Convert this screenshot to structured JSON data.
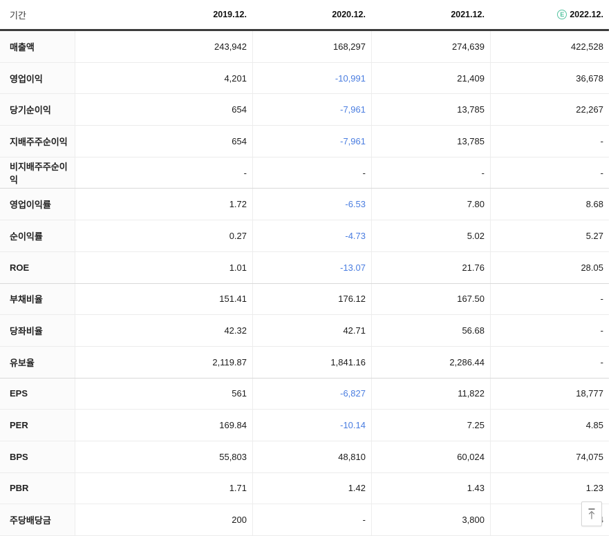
{
  "table": {
    "period_label": "기간",
    "estimate_icon": "E",
    "columns": [
      {
        "label": "2019.12.",
        "estimate": false
      },
      {
        "label": "2020.12.",
        "estimate": false
      },
      {
        "label": "2021.12.",
        "estimate": false
      },
      {
        "label": "2022.12.",
        "estimate": true
      }
    ],
    "rows": [
      {
        "label": "매출액",
        "values": [
          "243,942",
          "168,297",
          "274,639",
          "422,528"
        ],
        "group_end": false
      },
      {
        "label": "영업이익",
        "values": [
          "4,201",
          "-10,991",
          "21,409",
          "36,678"
        ],
        "group_end": false
      },
      {
        "label": "당기순이익",
        "values": [
          "654",
          "-7,961",
          "13,785",
          "22,267"
        ],
        "group_end": false
      },
      {
        "label": "지배주주순이익",
        "values": [
          "654",
          "-7,961",
          "13,785",
          "-"
        ],
        "group_end": false
      },
      {
        "label": "비지배주주순이익",
        "values": [
          "-",
          "-",
          "-",
          "-"
        ],
        "group_end": true
      },
      {
        "label": "영업이익률",
        "values": [
          "1.72",
          "-6.53",
          "7.80",
          "8.68"
        ],
        "group_end": false
      },
      {
        "label": "순이익률",
        "values": [
          "0.27",
          "-4.73",
          "5.02",
          "5.27"
        ],
        "group_end": false
      },
      {
        "label": "ROE",
        "values": [
          "1.01",
          "-13.07",
          "21.76",
          "28.05"
        ],
        "group_end": true
      },
      {
        "label": "부채비율",
        "values": [
          "151.41",
          "176.12",
          "167.50",
          "-"
        ],
        "group_end": false
      },
      {
        "label": "당좌비율",
        "values": [
          "42.32",
          "42.71",
          "56.68",
          "-"
        ],
        "group_end": false
      },
      {
        "label": "유보율",
        "values": [
          "2,119.87",
          "1,841.16",
          "2,286.44",
          "-"
        ],
        "group_end": true
      },
      {
        "label": "EPS",
        "values": [
          "561",
          "-6,827",
          "11,822",
          "18,777"
        ],
        "group_end": false
      },
      {
        "label": "PER",
        "values": [
          "169.84",
          "-10.14",
          "7.25",
          "4.85"
        ],
        "group_end": false
      },
      {
        "label": "BPS",
        "values": [
          "55,803",
          "48,810",
          "60,024",
          "74,075"
        ],
        "group_end": false
      },
      {
        "label": "PBR",
        "values": [
          "1.71",
          "1.42",
          "1.43",
          "1.23"
        ],
        "group_end": false
      },
      {
        "label": "주당배당금",
        "values": [
          "200",
          "-",
          "3,800",
          "4"
        ],
        "group_end": false
      }
    ]
  },
  "scroll_top_button": {
    "icon": "arrow-up-to-top"
  },
  "colors": {
    "negative_value": "#4a7de0",
    "estimate_green": "#54c3a0",
    "header_border": "#3c3c3c",
    "row_line": "#ececec",
    "group_line": "#d9d9d9"
  }
}
